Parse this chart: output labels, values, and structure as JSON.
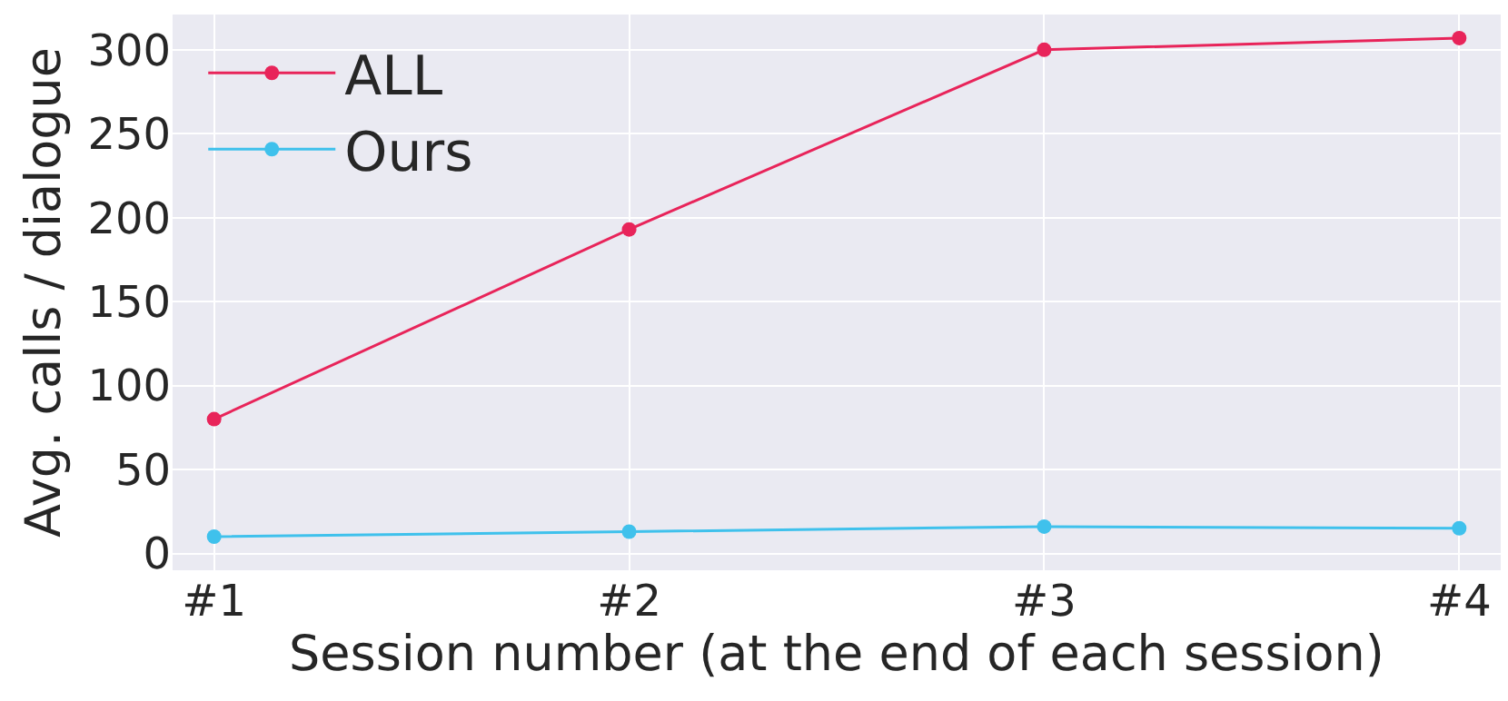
{
  "chart_data": {
    "type": "line",
    "xlabel": "Session number (at the end of each session)",
    "ylabel": "Avg. calls / dialogue",
    "categories": [
      "#1",
      "#2",
      "#3",
      "#4"
    ],
    "series": [
      {
        "name": "ALL",
        "color": "#e8245a",
        "values": [
          80,
          193,
          300,
          307
        ]
      },
      {
        "name": "Ours",
        "color": "#3fc1ec",
        "values": [
          10,
          13,
          16,
          15
        ]
      }
    ],
    "ylim": [
      -10,
      321
    ],
    "yticks": [
      0,
      50,
      100,
      150,
      200,
      250,
      300
    ],
    "grid": true,
    "legend": "top left",
    "marker": "circle",
    "line_style": "solid"
  }
}
